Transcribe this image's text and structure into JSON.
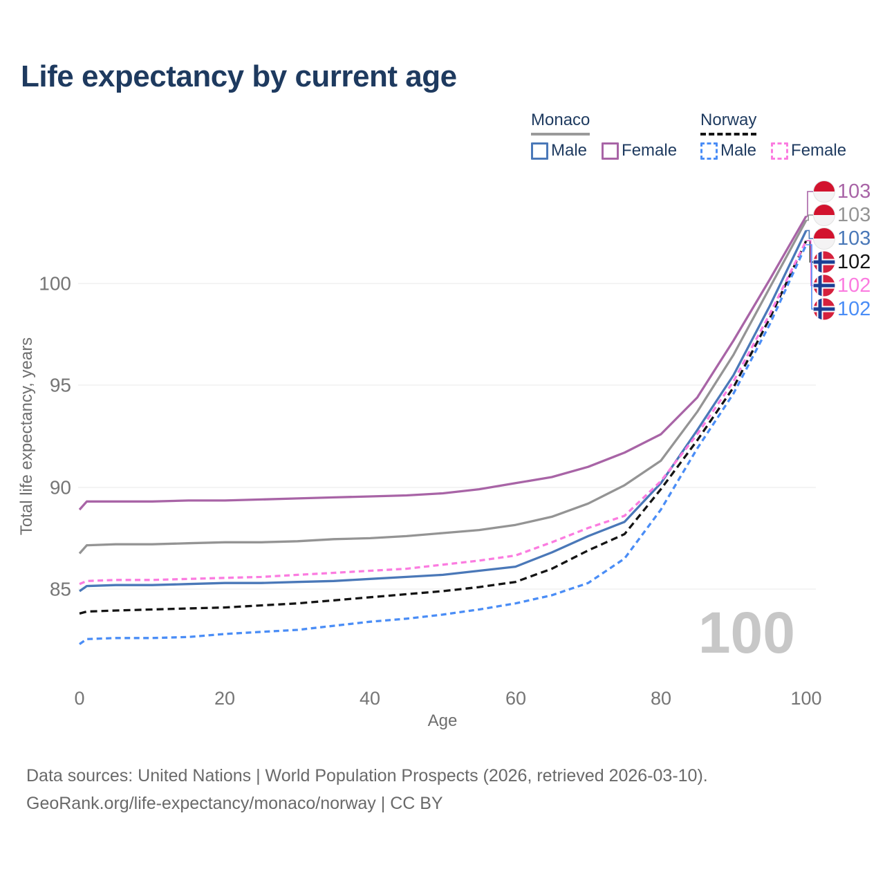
{
  "title": "Life expectancy by current age",
  "legend": {
    "groups": [
      {
        "country": "Monaco",
        "style": "solid",
        "underline_color": "#9a9a9a",
        "items": [
          {
            "label": "Male",
            "color": "#4a78b8",
            "style": "solid"
          },
          {
            "label": "Female",
            "color": "#a864a6",
            "style": "solid"
          }
        ]
      },
      {
        "country": "Norway",
        "style": "dashed",
        "underline_color": "#141414",
        "items": [
          {
            "label": "Male",
            "color": "#4a8df6",
            "style": "dashed"
          },
          {
            "label": "Female",
            "color": "#fb7ce0",
            "style": "dashed"
          }
        ]
      }
    ]
  },
  "chart_data": {
    "type": "line",
    "title": "Life expectancy by current age",
    "xlabel": "Age",
    "ylabel": "Total life expectancy, years",
    "xlim": [
      0,
      100
    ],
    "ylim": [
      81.5,
      104.5
    ],
    "x_ticks": [
      0,
      20,
      40,
      60,
      80,
      100
    ],
    "x_tick_labels": [
      "0",
      "20",
      "40",
      "60",
      "80",
      "100"
    ],
    "y_ticks": [
      100,
      95,
      90,
      85
    ],
    "y_tick_labels": [
      "100",
      "95",
      "90",
      "85"
    ],
    "grid": "horizontal",
    "legend_position": "top-right",
    "watermark": "100",
    "ages": [
      0,
      1,
      5,
      10,
      15,
      20,
      25,
      30,
      35,
      40,
      45,
      50,
      55,
      60,
      65,
      70,
      75,
      80,
      85,
      90,
      95,
      100
    ],
    "series": [
      {
        "name": "Monaco Female",
        "country": "Monaco",
        "sex": "female",
        "style": "solid",
        "color": "#a864a6",
        "flag": "monaco",
        "end_label": "103",
        "values": [
          88.9,
          89.3,
          89.3,
          89.3,
          89.35,
          89.35,
          89.4,
          89.45,
          89.5,
          89.55,
          89.6,
          89.7,
          89.9,
          90.2,
          90.5,
          91.0,
          91.7,
          92.6,
          94.4,
          97.2,
          100.2,
          103.3
        ]
      },
      {
        "name": "Monaco",
        "country": "Monaco",
        "sex": "both",
        "style": "solid",
        "color": "#949494",
        "flag": "monaco",
        "end_label": "103",
        "values": [
          86.75,
          87.15,
          87.2,
          87.2,
          87.25,
          87.3,
          87.3,
          87.35,
          87.45,
          87.5,
          87.6,
          87.75,
          87.9,
          88.15,
          88.55,
          89.2,
          90.1,
          91.3,
          93.7,
          96.5,
          99.8,
          103.1
        ]
      },
      {
        "name": "Monaco Male",
        "country": "Monaco",
        "sex": "male",
        "style": "solid",
        "color": "#4a78b8",
        "flag": "monaco",
        "end_label": "103",
        "values": [
          84.9,
          85.15,
          85.2,
          85.2,
          85.25,
          85.3,
          85.3,
          85.35,
          85.4,
          85.5,
          85.6,
          85.7,
          85.9,
          86.1,
          86.8,
          87.6,
          88.3,
          90.2,
          92.8,
          95.5,
          98.9,
          102.6
        ]
      },
      {
        "name": "Norway",
        "country": "Norway",
        "sex": "both",
        "style": "dashed",
        "color": "#141414",
        "flag": "norway",
        "end_label": "102",
        "values": [
          83.8,
          83.9,
          83.95,
          84.0,
          84.05,
          84.1,
          84.2,
          84.3,
          84.45,
          84.6,
          84.75,
          84.9,
          85.1,
          85.35,
          86.0,
          86.9,
          87.7,
          89.9,
          92.3,
          94.9,
          98.3,
          102.1
        ]
      },
      {
        "name": "Norway Female",
        "country": "Norway",
        "sex": "female",
        "style": "dashed",
        "color": "#fb7ce0",
        "flag": "norway",
        "end_label": "102",
        "values": [
          85.25,
          85.4,
          85.45,
          85.45,
          85.5,
          85.55,
          85.6,
          85.7,
          85.8,
          85.9,
          86.0,
          86.2,
          86.4,
          86.65,
          87.3,
          88.0,
          88.6,
          90.3,
          92.6,
          95.2,
          98.5,
          102.1
        ]
      },
      {
        "name": "Norway Male",
        "country": "Norway",
        "sex": "male",
        "style": "dashed",
        "color": "#4a8df6",
        "flag": "norway",
        "end_label": "102",
        "values": [
          82.3,
          82.55,
          82.6,
          82.6,
          82.65,
          82.8,
          82.9,
          83.0,
          83.2,
          83.4,
          83.55,
          83.75,
          84.0,
          84.3,
          84.7,
          85.3,
          86.5,
          88.9,
          91.9,
          94.6,
          98.0,
          101.9
        ]
      }
    ]
  },
  "footer": {
    "line1": "Data sources: United Nations | World Population Prospects (2026, retrieved 2026-03-10).",
    "line2": "GeoRank.org/life-expectancy/monaco/norway | CC BY"
  }
}
